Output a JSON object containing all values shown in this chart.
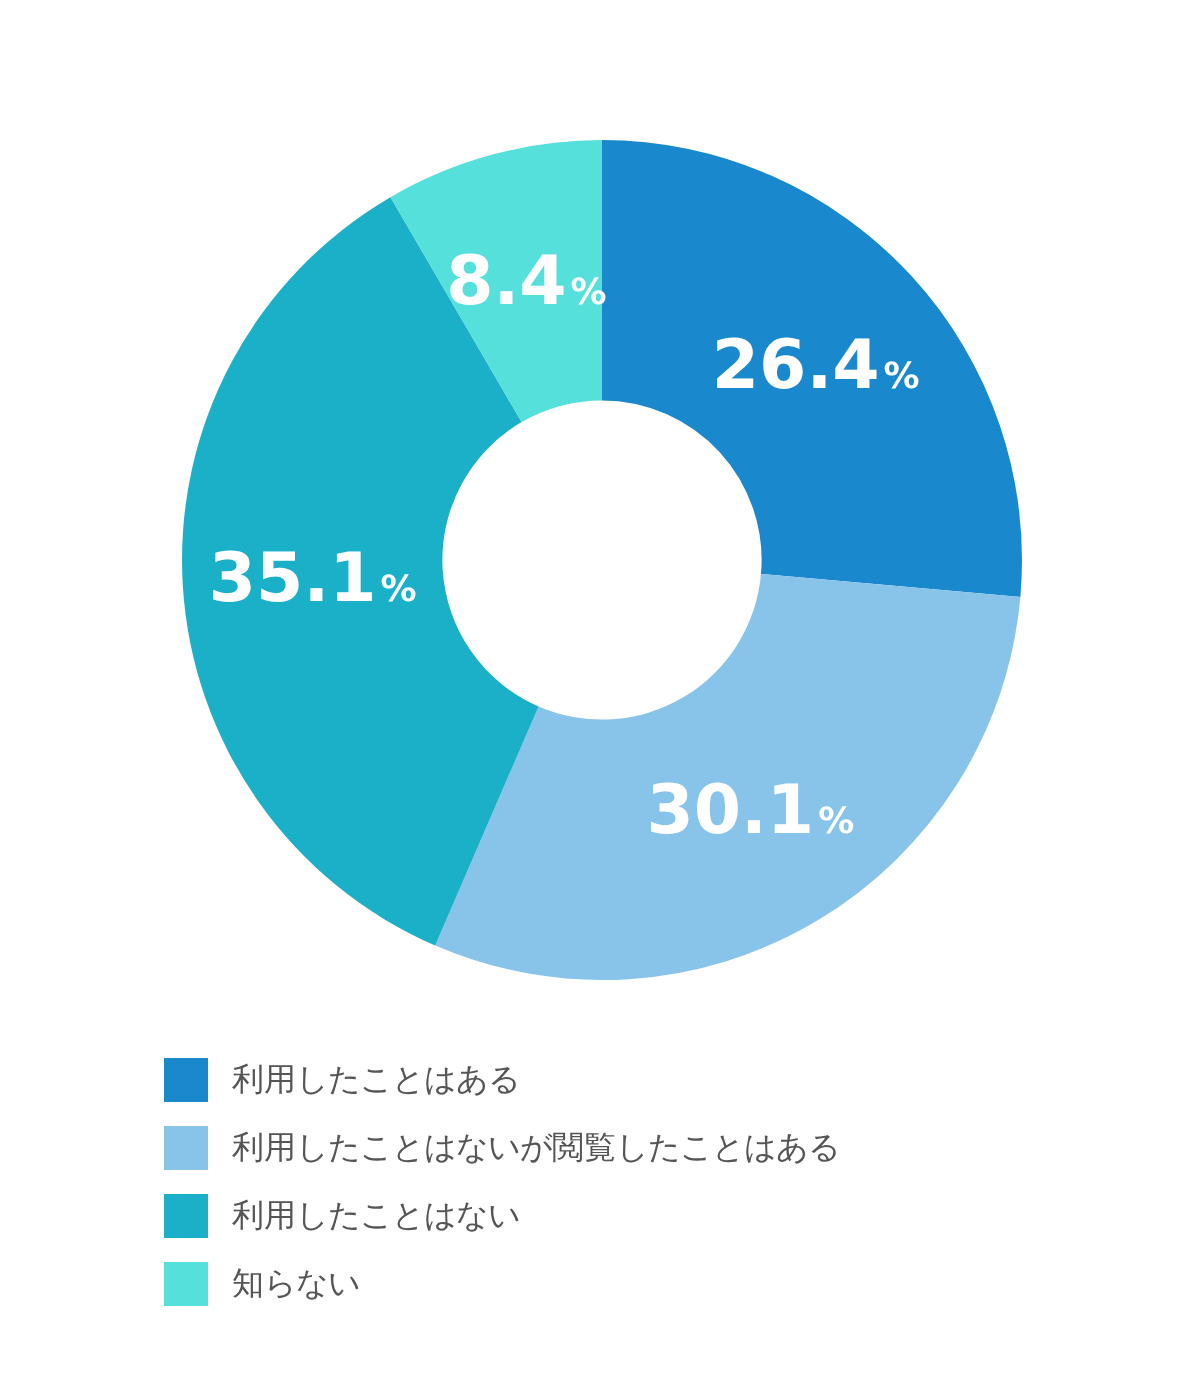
{
  "chart_data": {
    "type": "donut",
    "categories": [
      "利用したことはある",
      "利用したことはないが閲覧したことはある",
      "利用したことはない",
      "知らない"
    ],
    "values": [
      26.4,
      30.1,
      35.1,
      8.4
    ],
    "colors": [
      "#1a88cc",
      "#88c4ea",
      "#1ab0c8",
      "#55e0dc"
    ],
    "value_labels": [
      "26.4%",
      "30.1%",
      "35.1%",
      "8.4%"
    ],
    "legend": "bottom"
  }
}
